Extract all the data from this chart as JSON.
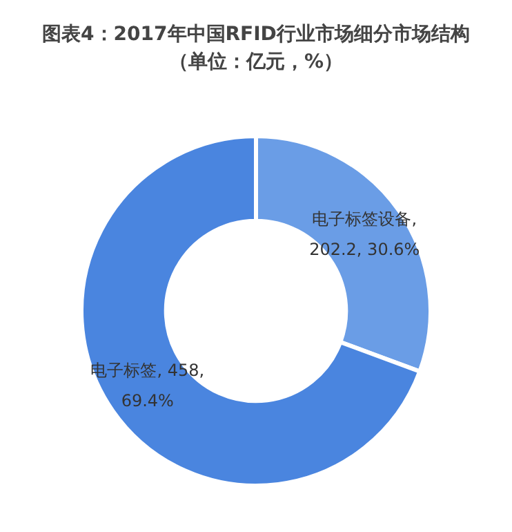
{
  "chart_data": {
    "type": "donut",
    "title": "图表4：2017年中国RFID行业市场细分市场结构",
    "subtitle": "（单位：亿元，%）",
    "categories": [
      "电子标签设备",
      "电子标签"
    ],
    "values": [
      202.2,
      458
    ],
    "colors": [
      "#6a9de6",
      "#4a85df"
    ],
    "value_labels": [
      ", 202.2, 30.6%",
      ", 458, 69.4%"
    ],
    "legend": false
  }
}
